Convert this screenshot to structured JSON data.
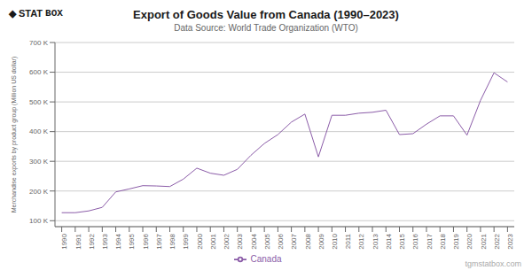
{
  "chart_data": {
    "type": "line",
    "title": "Export of Goods Value from Canada (1990–2023)",
    "subtitle": "Data Source: World Trade Organization (WTO)",
    "y_label": "Merchandise exports by product group (Million US dollar)",
    "annotations": [
      "◆",
      "STAT",
      "BOX",
      "tgmstatbox.com"
    ],
    "x": [
      1990,
      1991,
      1992,
      1993,
      1994,
      1995,
      1996,
      1997,
      1998,
      1999,
      2000,
      2001,
      2002,
      2003,
      2004,
      2005,
      2006,
      2007,
      2008,
      2009,
      2010,
      2011,
      2012,
      2013,
      2014,
      2015,
      2016,
      2017,
      2018,
      2019,
      2020,
      2021,
      2022,
      2023
    ],
    "series": [
      {
        "name": "Canada",
        "color": "#8B5CA8",
        "values": [
          127000,
          127000,
          133000,
          145000,
          197000,
          207000,
          218000,
          217000,
          215000,
          240000,
          277000,
          260000,
          253000,
          273000,
          320000,
          360000,
          390000,
          432000,
          459000,
          315000,
          455000,
          455000,
          462000,
          465000,
          472000,
          390000,
          393000,
          425000,
          453000,
          453000,
          388000,
          505000,
          598000,
          567000
        ]
      }
    ],
    "xlim": [
      1989.5,
      2023.5
    ],
    "xticks": [
      1990,
      1991,
      1992,
      1993,
      1994,
      1995,
      1996,
      1997,
      1998,
      1999,
      2000,
      2001,
      2002,
      2003,
      2004,
      2005,
      2006,
      2007,
      2008,
      2009,
      2010,
      2011,
      2012,
      2013,
      2014,
      2015,
      2016,
      2017,
      2018,
      2019,
      2020,
      2021,
      2022,
      2023
    ],
    "ylim": [
      80000,
      700000
    ],
    "yticks": [
      {
        "value": 100000,
        "label": "100 K"
      },
      {
        "value": 200000,
        "label": "200 K"
      },
      {
        "value": 300000,
        "label": "300 K"
      },
      {
        "value": 400000,
        "label": "400 K"
      },
      {
        "value": 500000,
        "label": "500 K"
      },
      {
        "value": 600000,
        "label": "600 K"
      },
      {
        "value": 700000,
        "label": "700 K"
      }
    ],
    "grid": true,
    "legend": "bottom"
  }
}
